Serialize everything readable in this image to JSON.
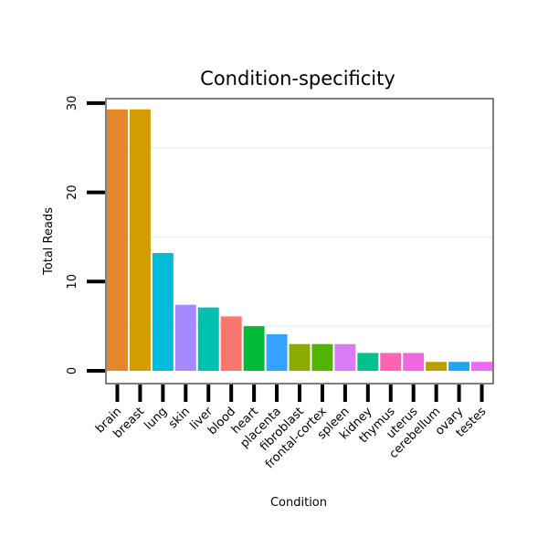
{
  "chart_data": {
    "type": "bar",
    "title": "Condition-specificity",
    "xlabel": "Condition",
    "ylabel": "Total Reads",
    "ylim": [
      -1.5,
      30.5
    ],
    "yticks": [
      0,
      10,
      20,
      30
    ],
    "categories": [
      "brain",
      "breast",
      "lung",
      "skin",
      "liver",
      "blood",
      "heart",
      "placenta",
      "fibroblast",
      "frontal-cortex",
      "spleen",
      "kidney",
      "thymus",
      "uterus",
      "cerebellum",
      "ovary",
      "testes"
    ],
    "values": [
      29.3,
      29.3,
      13.2,
      7.4,
      7.1,
      6.1,
      5.0,
      4.1,
      3.0,
      3.0,
      3.0,
      2.0,
      2.0,
      2.0,
      1.0,
      1.0,
      1.0
    ],
    "colors": [
      "#E6862A",
      "#D39C00",
      "#00BCD8",
      "#A58AFF",
      "#00C0AF",
      "#F8766D",
      "#00BA38",
      "#35A2FF",
      "#8CAB00",
      "#53B400",
      "#D97CF5",
      "#00C08B",
      "#FF63B6",
      "#F067E0",
      "#B9A000",
      "#1AA6F0",
      "#E76BF3"
    ],
    "grid": true
  }
}
